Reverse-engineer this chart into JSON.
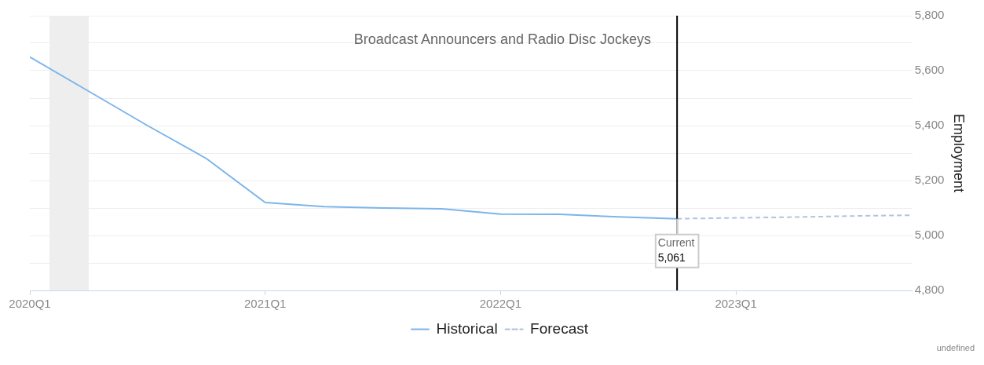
{
  "chart_data": {
    "type": "line",
    "title": "Broadcast Announcers and Radio Disc Jockeys",
    "ylabel": "Employment",
    "series": [
      {
        "name": "Historical",
        "color": "#7cb5ec",
        "line_style": "solid",
        "x": [
          "2020-01",
          "2020-04",
          "2020-07",
          "2020-10",
          "2021-01",
          "2021-04",
          "2021-07",
          "2021-10",
          "2022-01",
          "2022-04",
          "2022-07",
          "2022-10"
        ],
        "values": [
          5650,
          5525,
          5400,
          5280,
          5120,
          5105,
          5100,
          5097,
          5078,
          5077,
          5068,
          5061
        ]
      },
      {
        "name": "Forecast",
        "color": "#b0c4de",
        "line_style": "dashed",
        "x": [
          "2022-10",
          "2023-01",
          "2023-04",
          "2023-07",
          "2023-10"
        ],
        "values": [
          5061,
          5064,
          5067,
          5071,
          5074
        ]
      }
    ],
    "xlim": [
      "2020-01",
      "2023-10"
    ],
    "xticks": [
      {
        "value": "2020-01",
        "label": "2020Q1"
      },
      {
        "value": "2021-01",
        "label": "2021Q1"
      },
      {
        "value": "2022-01",
        "label": "2022Q1"
      },
      {
        "value": "2023-01",
        "label": "2023Q1"
      }
    ],
    "ylim": [
      4800,
      5800
    ],
    "yticks": [
      {
        "value": 4800,
        "label": "4,800"
      },
      {
        "value": 4900,
        "label": null
      },
      {
        "value": 5000,
        "label": "5,000"
      },
      {
        "value": 5100,
        "label": null
      },
      {
        "value": 5200,
        "label": "5,200"
      },
      {
        "value": 5300,
        "label": null
      },
      {
        "value": 5400,
        "label": "5,400"
      },
      {
        "value": 5500,
        "label": null
      },
      {
        "value": 5600,
        "label": "5,600"
      },
      {
        "value": 5700,
        "label": null
      },
      {
        "value": 5800,
        "label": "5,800"
      }
    ],
    "grid": "y",
    "legend": "bottom",
    "marker": "none",
    "ref_lines": [
      {
        "axis": "x",
        "value": "2022-10",
        "label": "Current",
        "color": "#000000"
      }
    ],
    "bands": [
      {
        "axis": "x",
        "from": "2020-02",
        "to": "2020-04",
        "color": "#eeeeee"
      }
    ],
    "annotations": [
      {
        "text": "5,061",
        "x": "2022-10",
        "y": 5061
      },
      "undefined"
    ]
  }
}
